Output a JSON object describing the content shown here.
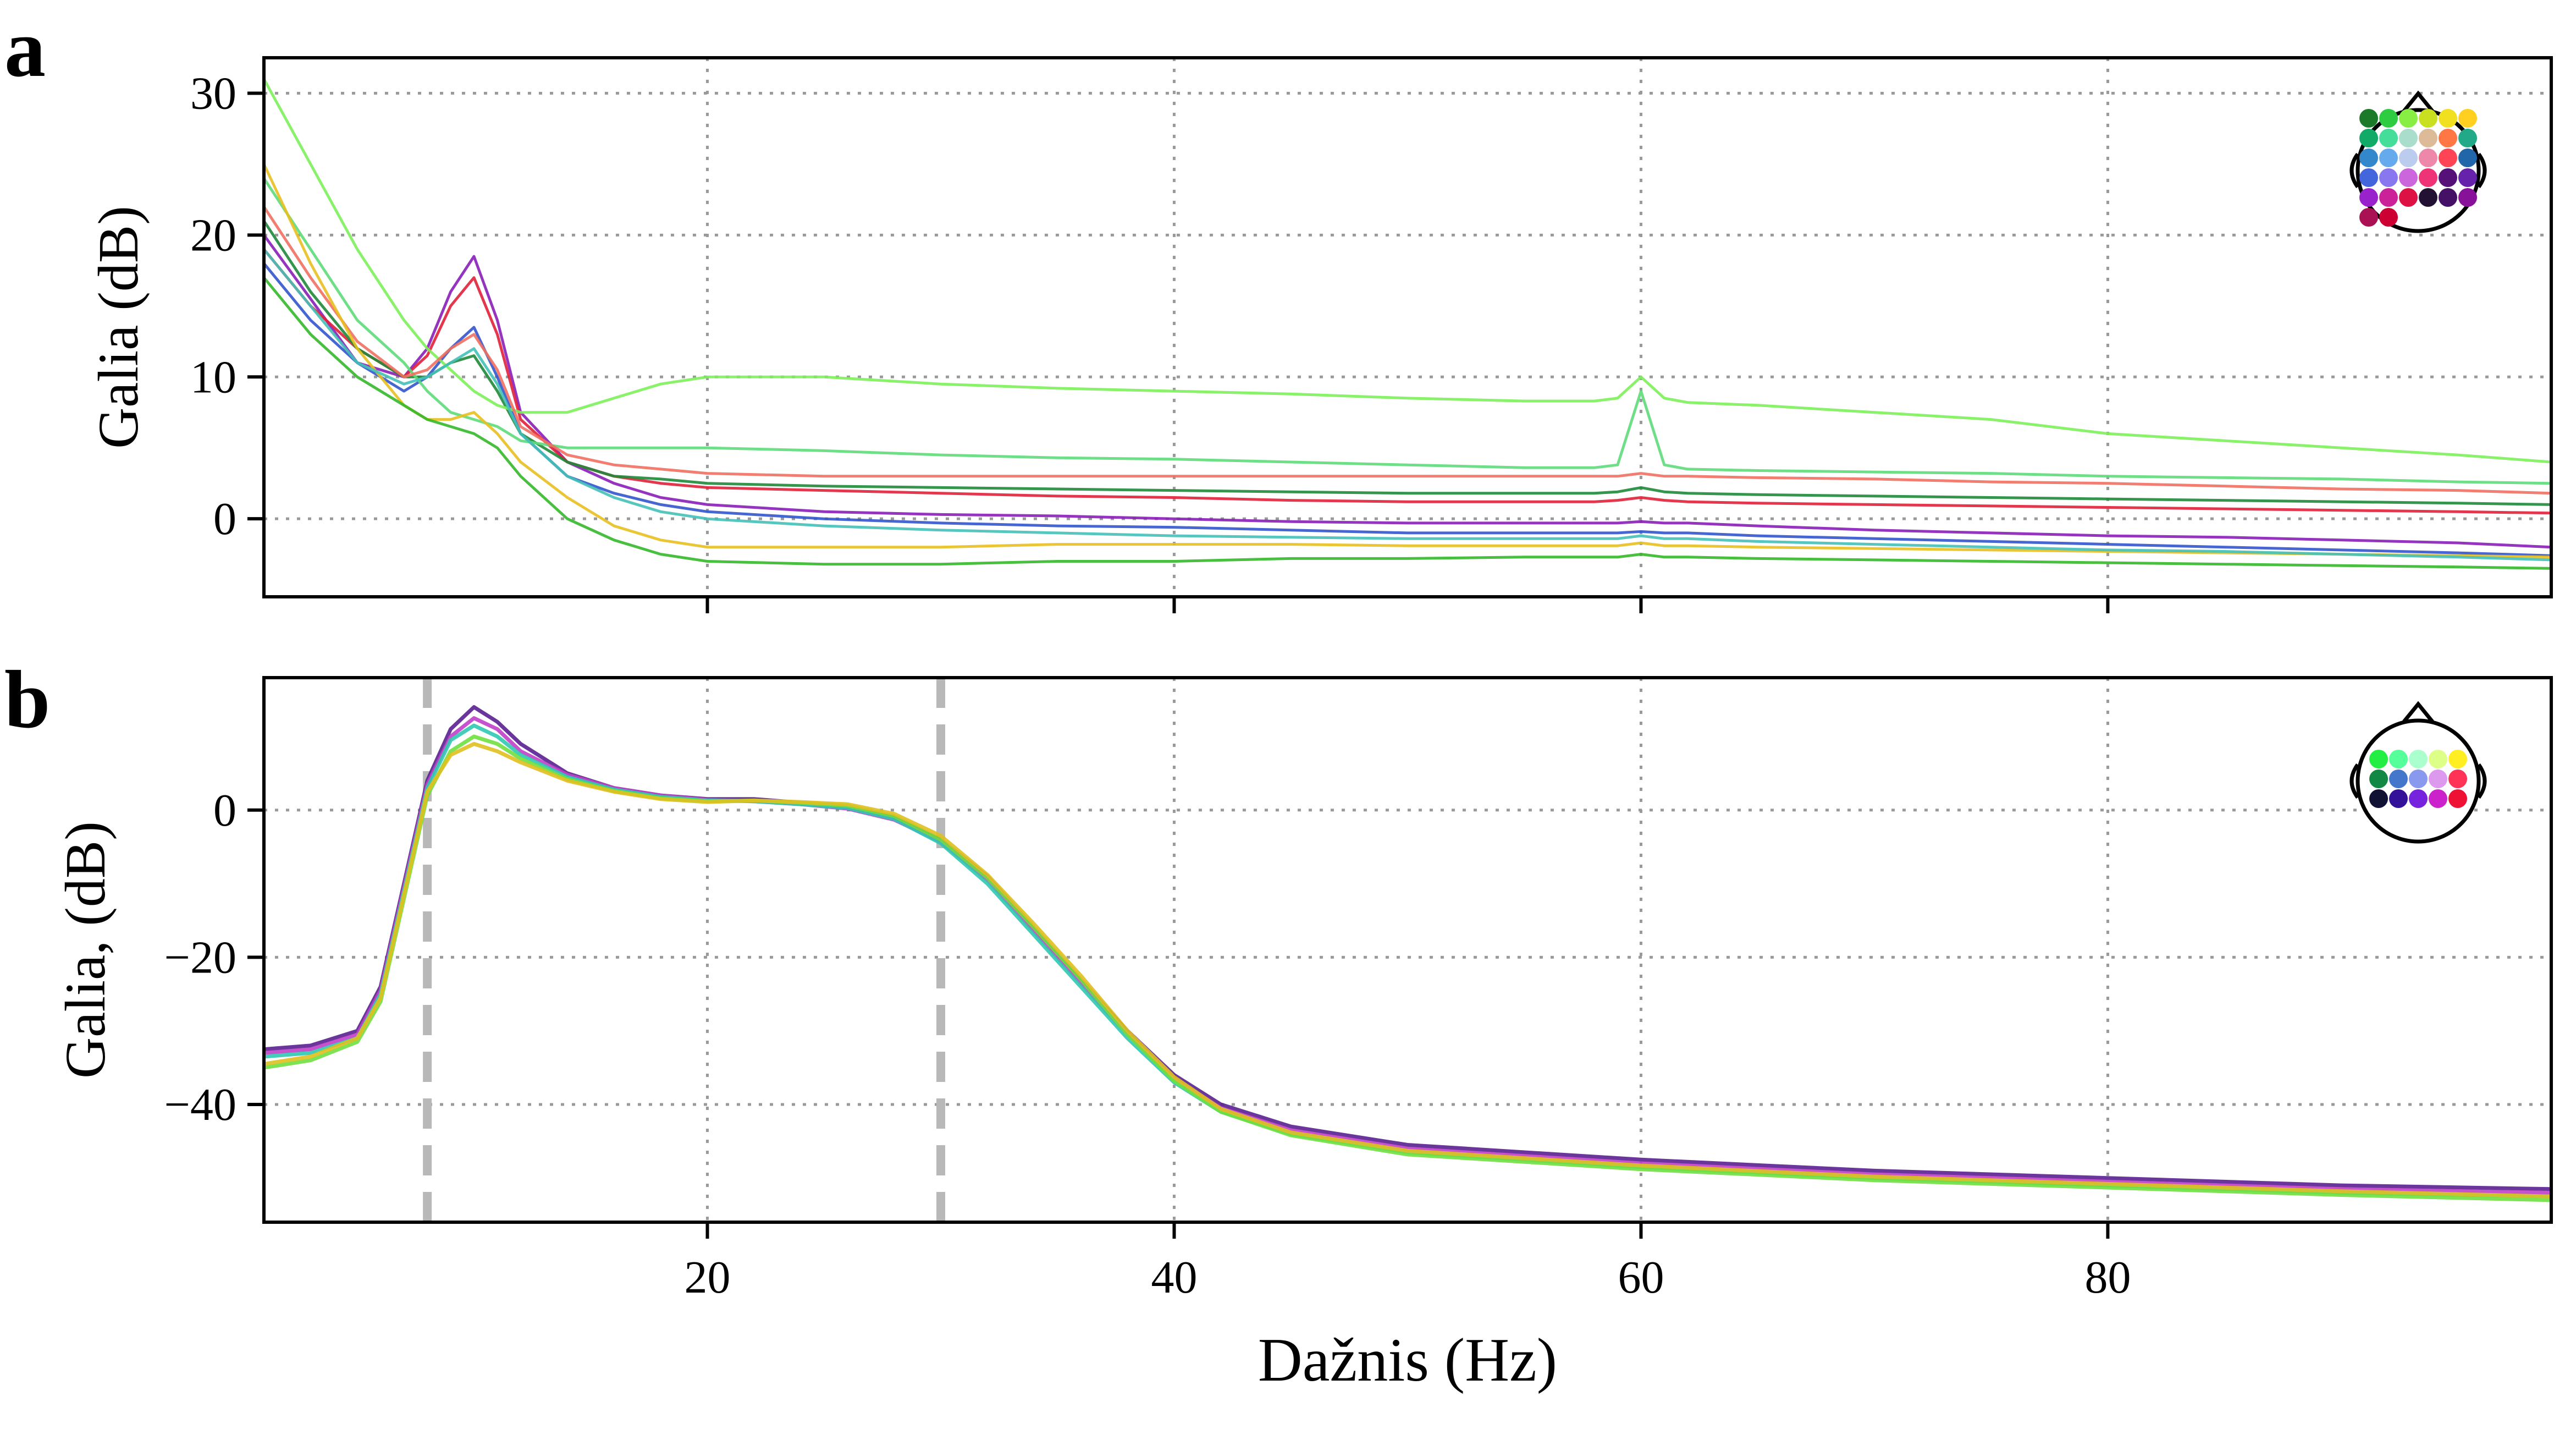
{
  "figure": {
    "panel_a_letter": "a",
    "panel_b_letter": "b",
    "xlabel": "Dažnis (Hz)"
  },
  "chart_data": [
    {
      "type": "line",
      "panel": "a",
      "title": "",
      "xlabel": "",
      "ylabel": "Galia (dB)",
      "xlim": [
        1,
        99
      ],
      "ylim": [
        -5.5,
        32.5
      ],
      "xticks": [
        20,
        40,
        60,
        80
      ],
      "xtick_labels": [],
      "yticks": [
        0,
        10,
        20,
        30
      ],
      "ytick_labels": [
        "0",
        "10",
        "20",
        "30"
      ],
      "grid": true,
      "legend": "sensor-layout head inset, top-right",
      "x": [
        1,
        3,
        5,
        7,
        8,
        9,
        10,
        11,
        12,
        14,
        16,
        18,
        20,
        25,
        30,
        35,
        40,
        45,
        50,
        55,
        58,
        59,
        60,
        61,
        62,
        65,
        70,
        75,
        80,
        85,
        90,
        95,
        99
      ],
      "series": [
        {
          "color": "#8a1fb8",
          "values": [
            20,
            15.5,
            11,
            10,
            12,
            16,
            18.5,
            14,
            7.5,
            4,
            2.5,
            1.5,
            1,
            0.5,
            0.3,
            0.2,
            0,
            -0.2,
            -0.3,
            -0.3,
            -0.3,
            -0.3,
            -0.2,
            -0.3,
            -0.3,
            -0.5,
            -0.8,
            -1,
            -1.2,
            -1.3,
            -1.5,
            -1.7,
            -2
          ]
        },
        {
          "color": "#e0213a",
          "values": [
            19,
            15,
            12,
            10,
            11.5,
            15,
            17,
            13,
            7,
            4,
            3,
            2.5,
            2.2,
            2,
            1.8,
            1.6,
            1.5,
            1.3,
            1.2,
            1.2,
            1.2,
            1.3,
            1.5,
            1.3,
            1.2,
            1.1,
            1,
            0.9,
            0.8,
            0.7,
            0.6,
            0.5,
            0.4
          ]
        },
        {
          "color": "#3355cc",
          "values": [
            18,
            14,
            11,
            9,
            10,
            12,
            13.5,
            10,
            6,
            3,
            1.8,
            1,
            0.5,
            0,
            -0.3,
            -0.5,
            -0.6,
            -0.8,
            -1,
            -1,
            -1,
            -1,
            -0.9,
            -1,
            -1,
            -1.2,
            -1.4,
            -1.6,
            -1.8,
            -2,
            -2.2,
            -2.4,
            -2.6
          ]
        },
        {
          "color": "#1f8a3a",
          "values": [
            21,
            16,
            12,
            10,
            10,
            11,
            11.5,
            9,
            6,
            4,
            3,
            2.8,
            2.5,
            2.3,
            2.2,
            2.1,
            2,
            1.9,
            1.8,
            1.8,
            1.8,
            1.9,
            2.2,
            1.9,
            1.8,
            1.7,
            1.6,
            1.5,
            1.4,
            1.3,
            1.2,
            1.1,
            1
          ]
        },
        {
          "color": "#7cf05a",
          "values": [
            31,
            25,
            19,
            14,
            12,
            10.5,
            9,
            8,
            7.5,
            7.5,
            8.5,
            9.5,
            10,
            10,
            9.5,
            9.2,
            9,
            8.8,
            8.5,
            8.3,
            8.3,
            8.5,
            10,
            8.5,
            8.2,
            8,
            7.5,
            7,
            6,
            5.5,
            5,
            4.5,
            4
          ]
        },
        {
          "color": "#5fdc7a",
          "values": [
            24,
            19,
            14,
            11,
            9,
            7.5,
            7,
            6.5,
            5.5,
            5,
            5,
            5,
            5,
            4.8,
            4.5,
            4.3,
            4.2,
            4,
            3.8,
            3.6,
            3.6,
            3.8,
            9,
            3.8,
            3.5,
            3.4,
            3.3,
            3.2,
            3,
            2.9,
            2.8,
            2.6,
            2.5
          ]
        },
        {
          "color": "#f07060",
          "values": [
            22,
            17,
            12.5,
            10,
            10.5,
            12,
            13,
            10.5,
            6.5,
            4.5,
            3.8,
            3.5,
            3.2,
            3,
            3,
            3,
            3,
            3,
            3,
            3,
            3,
            3,
            3.2,
            3,
            3,
            2.9,
            2.8,
            2.6,
            2.5,
            2.3,
            2.1,
            2,
            1.8
          ]
        },
        {
          "color": "#e8c020",
          "values": [
            25,
            18,
            12,
            8,
            7,
            7,
            7.5,
            6,
            4,
            1.5,
            -0.5,
            -1.5,
            -2,
            -2,
            -2,
            -1.8,
            -1.8,
            -1.8,
            -1.9,
            -1.9,
            -1.9,
            -1.9,
            -1.7,
            -1.9,
            -1.9,
            -2,
            -2.1,
            -2.2,
            -2.3,
            -2.4,
            -2.5,
            -2.6,
            -2.7
          ]
        },
        {
          "color": "#35b82a",
          "values": [
            17,
            13,
            10,
            8,
            7,
            6.5,
            6,
            5,
            3,
            0,
            -1.5,
            -2.5,
            -3,
            -3.2,
            -3.2,
            -3,
            -3,
            -2.8,
            -2.8,
            -2.7,
            -2.7,
            -2.7,
            -2.5,
            -2.7,
            -2.7,
            -2.8,
            -2.9,
            -3,
            -3.1,
            -3.2,
            -3.3,
            -3.4,
            -3.5
          ]
        },
        {
          "color": "#45c0b8",
          "values": [
            19,
            15,
            11,
            9.5,
            10,
            11,
            12,
            9.5,
            6,
            3,
            1.5,
            0.5,
            0,
            -0.5,
            -0.8,
            -1,
            -1.2,
            -1.3,
            -1.4,
            -1.4,
            -1.4,
            -1.4,
            -1.2,
            -1.4,
            -1.4,
            -1.6,
            -1.8,
            -2,
            -2.2,
            -2.3,
            -2.5,
            -2.7,
            -2.9
          ]
        }
      ]
    },
    {
      "type": "line",
      "panel": "b",
      "title": "",
      "xlabel": "Dažnis (Hz)",
      "ylabel": "Galia, (dB)",
      "xlim": [
        1,
        99
      ],
      "ylim": [
        -56,
        18
      ],
      "xticks": [
        20,
        40,
        60,
        80
      ],
      "xtick_labels": [
        "20",
        "40",
        "60",
        "80"
      ],
      "yticks": [
        0,
        -20,
        -40
      ],
      "ytick_labels": [
        "0",
        "−20",
        "−40"
      ],
      "grid": true,
      "legend": "sensor-layout head inset, top-right",
      "vlines": [
        8,
        30
      ],
      "x": [
        1,
        3,
        5,
        6,
        7,
        8,
        9,
        10,
        11,
        12,
        14,
        16,
        18,
        20,
        22,
        24,
        26,
        28,
        30,
        32,
        34,
        36,
        38,
        40,
        42,
        45,
        50,
        60,
        70,
        80,
        90,
        99
      ],
      "series": [
        {
          "color": "#5a2090",
          "values": [
            -32.5,
            -32,
            -30,
            -24,
            -10,
            4,
            11,
            14,
            12,
            9,
            5,
            3,
            2,
            1.5,
            1.5,
            1,
            0.5,
            -1,
            -4,
            -9,
            -16,
            -23,
            -30,
            -36,
            -40,
            -43,
            -45.5,
            -47.5,
            -49,
            -50,
            -51,
            -51.5
          ]
        },
        {
          "color": "#c040c8",
          "values": [
            -33,
            -32.5,
            -30.5,
            -24.5,
            -10.5,
            3.5,
            10,
            12.5,
            11,
            8,
            4.8,
            3,
            2,
            1.4,
            1.2,
            0.8,
            0.2,
            -1.3,
            -4.3,
            -9.5,
            -16.5,
            -23.5,
            -30.5,
            -36.5,
            -40.5,
            -43.5,
            -46,
            -48,
            -49.5,
            -50.5,
            -51.5,
            -52
          ]
        },
        {
          "color": "#30c8b0",
          "values": [
            -33.5,
            -33,
            -31,
            -25,
            -11,
            3,
            9.5,
            11.5,
            10,
            7.5,
            4.5,
            2.8,
            1.8,
            1.3,
            1.2,
            0.8,
            0.3,
            -1.2,
            -4.5,
            -10,
            -17,
            -24,
            -31,
            -37,
            -41,
            -44,
            -46.5,
            -48.5,
            -50,
            -51,
            -52,
            -52.5
          ]
        },
        {
          "color": "#70e040",
          "values": [
            -35,
            -34,
            -31.5,
            -26,
            -12,
            2,
            8,
            10,
            9,
            7,
            4.2,
            2.6,
            1.6,
            1.2,
            1.3,
            1,
            0.6,
            -0.8,
            -4,
            -9.2,
            -16,
            -23,
            -30.5,
            -36.8,
            -41,
            -44.2,
            -46.8,
            -48.8,
            -50.3,
            -51.3,
            -52.3,
            -53
          ]
        },
        {
          "color": "#e0c020",
          "values": [
            -34.5,
            -33.5,
            -31,
            -25.5,
            -11.5,
            2.5,
            7.5,
            9,
            8,
            6.5,
            4,
            2.5,
            1.5,
            1.1,
            1.3,
            1.1,
            0.8,
            -0.5,
            -3.5,
            -8.8,
            -15.5,
            -22.5,
            -30,
            -36.3,
            -40.6,
            -43.8,
            -46.3,
            -48.3,
            -49.8,
            -50.8,
            -51.8,
            -52.5
          ]
        }
      ]
    }
  ],
  "head_insets": {
    "a_colors": [
      "#1a7a2a",
      "#2ecc40",
      "#88ee44",
      "#c8e020",
      "#f0e020",
      "#ffd020",
      "#11aa66",
      "#44dd99",
      "#aaddcc",
      "#ddbb99",
      "#ff7744",
      "#22aa88",
      "#3388cc",
      "#66aaee",
      "#bbccee",
      "#ee88aa",
      "#ff4455",
      "#2266aa",
      "#4466dd",
      "#8877ee",
      "#cc66dd",
      "#ee3377",
      "#551177",
      "#6622aa",
      "#9922cc",
      "#cc2299",
      "#dd1144",
      "#221133",
      "#441166",
      "#881199",
      "#aa1155",
      "#cc0033"
    ],
    "b_colors": [
      "#22ee44",
      "#55ff99",
      "#aaffcc",
      "#ddff88",
      "#ffee22",
      "#118844",
      "#4477cc",
      "#8899ee",
      "#dd99ee",
      "#ff3355",
      "#111133",
      "#331199",
      "#7722dd",
      "#cc22cc",
      "#ee1133"
    ]
  }
}
